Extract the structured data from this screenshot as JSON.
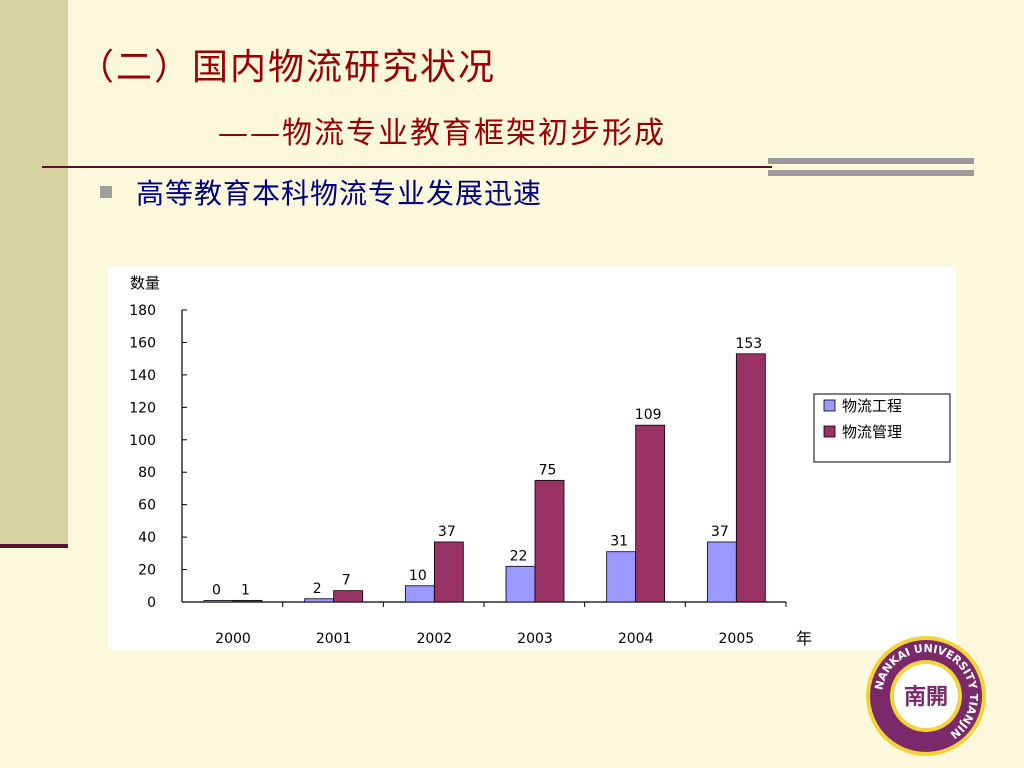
{
  "slide": {
    "title": "（二）国内物流研究状况",
    "subtitle": "——物流专业教育框架初步形成",
    "bullet": "高等教育本科物流专业发展迅速"
  },
  "seal": {
    "text": "NANKAI UNIVERSITY TIANJIN",
    "center": "南開"
  },
  "chart_data": {
    "type": "bar",
    "ylabel": "数量",
    "xlabel": "年",
    "categories": [
      "2000",
      "2001",
      "2002",
      "2003",
      "2004",
      "2005"
    ],
    "series": [
      {
        "name": "物流工程",
        "color": "#9999ff",
        "values": [
          0,
          2,
          10,
          22,
          31,
          37
        ]
      },
      {
        "name": "物流管理",
        "color": "#993366",
        "values": [
          1,
          7,
          37,
          75,
          109,
          153
        ]
      }
    ],
    "ylim": [
      0,
      180
    ],
    "yticks": [
      0,
      20,
      40,
      60,
      80,
      100,
      120,
      140,
      160,
      180
    ],
    "grid": false,
    "legend": "right"
  }
}
